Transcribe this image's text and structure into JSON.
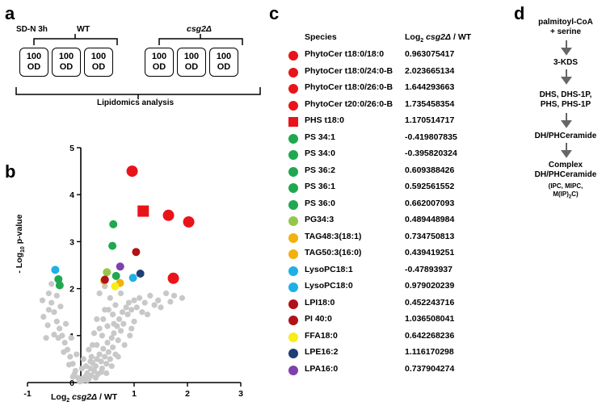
{
  "panels": {
    "a": "a",
    "b": "b",
    "c": "c",
    "d": "d"
  },
  "panel_a": {
    "condition": "SD-N 3h",
    "wt_label": "WT",
    "mutant_label": "csg2Δ",
    "box_line1": "100",
    "box_line2": "OD",
    "bottom_label": "Lipidomics analysis"
  },
  "panel_c": {
    "header_species": "Species",
    "header_value_prefix": "Log",
    "header_value_sub": "2",
    "header_value_italic": "csg2Δ",
    "header_value_suffix": "/ WT",
    "rows": [
      {
        "species": "PhytoCer t18:0/18:0",
        "value": "0.963075417",
        "color": "#e8141a",
        "shape": "circle"
      },
      {
        "species": "PhytoCer t18:0/24:0-B",
        "value": "2.023665134",
        "color": "#e8141a",
        "shape": "circle"
      },
      {
        "species": "PhytoCer t18:0/26:0-B",
        "value": "1.644293663",
        "color": "#e8141a",
        "shape": "circle"
      },
      {
        "species": "PhytoCer t20:0/26:0-B",
        "value": "1.735458354",
        "color": "#e8141a",
        "shape": "circle"
      },
      {
        "species": "PHS t18:0",
        "value": "1.170514717",
        "color": "#e8141a",
        "shape": "square"
      },
      {
        "species": "PS 34:1",
        "value": "-0.419807835",
        "color": "#1fa84f",
        "shape": "circle"
      },
      {
        "species": "PS 34:0",
        "value": "-0.395820324",
        "color": "#1fa84f",
        "shape": "circle"
      },
      {
        "species": "PS 36:2",
        "value": "0.609388426",
        "color": "#1fa84f",
        "shape": "circle"
      },
      {
        "species": "PS 36:1",
        "value": "0.592561552",
        "color": "#1fa84f",
        "shape": "circle"
      },
      {
        "species": "PS 36:0",
        "value": "0.662007093",
        "color": "#1fa84f",
        "shape": "circle"
      },
      {
        "species": "PG34:3",
        "value": "0.489448984",
        "color": "#92c84a",
        "shape": "circle"
      },
      {
        "species": "TAG48:3(18:1)",
        "value": "0.734750813",
        "color": "#f2b10f",
        "shape": "circle"
      },
      {
        "species": "TAG50:3(16:0)",
        "value": "0.439419251",
        "color": "#f2b10f",
        "shape": "circle"
      },
      {
        "species": "LysoPC18:1",
        "value": "-0.47893937",
        "color": "#1eb0e6",
        "shape": "circle"
      },
      {
        "species": "LysoPC18:0",
        "value": "0.979020239",
        "color": "#1eb0e6",
        "shape": "circle"
      },
      {
        "species": "LPI18:0",
        "value": "0.452243716",
        "color": "#b01217",
        "shape": "circle"
      },
      {
        "species": "PI 40:0",
        "value": "1.036508041",
        "color": "#b01217",
        "shape": "circle"
      },
      {
        "species": "FFA18:0",
        "value": "0.642268236",
        "color": "#f6ee16",
        "shape": "circle"
      },
      {
        "species": "LPE16:2",
        "value": "1.116170298",
        "color": "#1d3f74",
        "shape": "circle"
      },
      {
        "species": "LPA16:0",
        "value": "0.737904274",
        "color": "#7f3fae",
        "shape": "circle"
      }
    ]
  },
  "panel_d": {
    "steps": [
      "palmitoyl-CoA\n+ serine",
      "3-KDS",
      "DHS, DHS-1P,\nPHS, PHS-1P",
      "DH/PHCeramide",
      "Complex\nDH/PHCeramide"
    ],
    "footnote": "(IPC, MIPC,",
    "footnote2_prefix": "M(IP)",
    "footnote2_sub": "2",
    "footnote2_suffix": "C)"
  },
  "chart_data": {
    "type": "scatter",
    "xlabel_prefix": "Log",
    "xlabel_sub": "2",
    "xlabel_italic": "csg2Δ",
    "xlabel_suffix": "/ WT",
    "ylabel_prefix": "- Log",
    "ylabel_sub": "10",
    "ylabel_suffix": "p-value",
    "xlim": [
      -1,
      3
    ],
    "ylim": [
      0,
      5
    ],
    "x_ticks": [
      "-1",
      "1",
      "2",
      "3"
    ],
    "x_tick_values": [
      -1,
      1,
      2,
      3
    ],
    "y_ticks": [
      "0",
      "1",
      "2",
      "3",
      "4",
      "5"
    ],
    "y_tick_values": [
      0,
      1,
      2,
      3,
      4,
      5
    ],
    "background_points": [
      [
        0.05,
        0.05
      ],
      [
        0.08,
        0.12
      ],
      [
        0.12,
        0.2
      ],
      [
        0.15,
        0.08
      ],
      [
        0.18,
        0.3
      ],
      [
        0.2,
        0.15
      ],
      [
        0.22,
        0.42
      ],
      [
        0.25,
        0.25
      ],
      [
        0.28,
        0.35
      ],
      [
        0.3,
        0.5
      ],
      [
        0.32,
        0.18
      ],
      [
        0.35,
        0.6
      ],
      [
        0.38,
        0.45
      ],
      [
        0.4,
        0.3
      ],
      [
        0.42,
        0.72
      ],
      [
        0.45,
        0.55
      ],
      [
        0.48,
        0.4
      ],
      [
        0.5,
        0.85
      ],
      [
        0.52,
        0.65
      ],
      [
        0.55,
        0.5
      ],
      [
        0.58,
        0.95
      ],
      [
        0.6,
        0.75
      ],
      [
        0.62,
        1.05
      ],
      [
        0.65,
        0.6
      ],
      [
        0.68,
        1.2
      ],
      [
        0.7,
        0.9
      ],
      [
        0.72,
        1.35
      ],
      [
        0.75,
        1.1
      ],
      [
        0.78,
        1.5
      ],
      [
        0.8,
        1.25
      ],
      [
        0.85,
        1.6
      ],
      [
        0.88,
        1.45
      ],
      [
        0.9,
        1.7
      ],
      [
        0.95,
        1.55
      ],
      [
        1.0,
        1.75
      ],
      [
        1.05,
        1.6
      ],
      [
        1.1,
        1.8
      ],
      [
        1.2,
        1.7
      ],
      [
        1.3,
        1.85
      ],
      [
        1.45,
        1.75
      ],
      [
        1.6,
        1.9
      ],
      [
        1.75,
        1.85
      ],
      [
        1.9,
        1.8
      ],
      [
        0.1,
        0.35
      ],
      [
        0.2,
        0.55
      ],
      [
        0.3,
        0.8
      ],
      [
        0.4,
        1.0
      ],
      [
        0.5,
        1.2
      ],
      [
        0.6,
        1.45
      ],
      [
        0.55,
        1.8
      ],
      [
        0.45,
        1.55
      ],
      [
        0.35,
        1.9
      ],
      [
        0.45,
        2.05
      ],
      [
        0.3,
        1.35
      ],
      [
        0.15,
        0.7
      ],
      [
        -0.05,
        0.1
      ],
      [
        -0.1,
        0.25
      ],
      [
        -0.15,
        0.4
      ],
      [
        -0.2,
        0.55
      ],
      [
        -0.25,
        0.7
      ],
      [
        -0.3,
        0.85
      ],
      [
        -0.35,
        1.0
      ],
      [
        -0.4,
        1.15
      ],
      [
        -0.45,
        1.3
      ],
      [
        -0.5,
        1.5
      ],
      [
        -0.55,
        1.7
      ],
      [
        -0.6,
        1.9
      ],
      [
        -0.42,
        0.95
      ],
      [
        -0.32,
        0.65
      ],
      [
        -0.22,
        0.38
      ],
      [
        -0.12,
        0.18
      ],
      [
        -0.5,
        1.02
      ],
      [
        -0.62,
        1.22
      ],
      [
        -0.38,
        1.62
      ],
      [
        -0.28,
        1.25
      ],
      [
        -0.18,
        0.95
      ],
      [
        -0.08,
        0.6
      ],
      [
        0.02,
        0.3
      ],
      [
        -0.55,
        2.1
      ],
      [
        -0.45,
        1.85
      ],
      [
        0.25,
        1.05
      ],
      [
        0.05,
        0.5
      ],
      [
        0.65,
        1.65
      ],
      [
        0.75,
        1.9
      ],
      [
        -0.02,
        0.02
      ],
      [
        0.02,
        0.08
      ],
      [
        -0.15,
        0.12
      ],
      [
        0.12,
        0.05
      ],
      [
        0.28,
        0.1
      ],
      [
        0.38,
        0.22
      ],
      [
        0.48,
        0.2
      ],
      [
        0.18,
        0.45
      ],
      [
        0.58,
        0.35
      ],
      [
        0.7,
        0.55
      ],
      [
        0.82,
        0.8
      ],
      [
        0.92,
        1.0
      ],
      [
        1.0,
        1.3
      ],
      [
        0.95,
        1.15
      ],
      [
        1.15,
        1.5
      ],
      [
        1.25,
        1.45
      ],
      [
        1.38,
        1.65
      ],
      [
        1.5,
        1.6
      ],
      [
        1.68,
        1.72
      ],
      [
        0.35,
        1.15
      ],
      [
        0.42,
        1.35
      ],
      [
        0.52,
        1.55
      ],
      [
        0.62,
        1.25
      ],
      [
        0.22,
        0.8
      ],
      [
        -0.65,
        0.95
      ],
      [
        -0.7,
        1.4
      ],
      [
        -0.72,
        1.75
      ],
      [
        -0.6,
        1.55
      ]
    ],
    "highlight_points": [
      {
        "x": 0.963075417,
        "y": 4.5,
        "color": "#e8141a",
        "shape": "circle",
        "size": "large"
      },
      {
        "x": 2.023665134,
        "y": 3.42,
        "color": "#e8141a",
        "shape": "circle",
        "size": "large"
      },
      {
        "x": 1.644293663,
        "y": 3.56,
        "color": "#e8141a",
        "shape": "circle",
        "size": "large"
      },
      {
        "x": 1.735458354,
        "y": 2.22,
        "color": "#e8141a",
        "shape": "circle",
        "size": "large"
      },
      {
        "x": 1.170514717,
        "y": 3.65,
        "color": "#e8141a",
        "shape": "square",
        "size": "large"
      },
      {
        "x": -0.419807835,
        "y": 2.2,
        "color": "#1fa84f",
        "shape": "circle",
        "size": "small"
      },
      {
        "x": -0.395820324,
        "y": 2.07,
        "color": "#1fa84f",
        "shape": "circle",
        "size": "small"
      },
      {
        "x": 0.609388426,
        "y": 3.37,
        "color": "#1fa84f",
        "shape": "circle",
        "size": "small"
      },
      {
        "x": 0.592561552,
        "y": 2.91,
        "color": "#1fa84f",
        "shape": "circle",
        "size": "small"
      },
      {
        "x": 0.662007093,
        "y": 2.27,
        "color": "#1fa84f",
        "shape": "circle",
        "size": "small"
      },
      {
        "x": 0.489448984,
        "y": 2.35,
        "color": "#92c84a",
        "shape": "circle",
        "size": "small"
      },
      {
        "x": 0.734750813,
        "y": 2.12,
        "color": "#f2b10f",
        "shape": "circle",
        "size": "small"
      },
      {
        "x": 0.439419251,
        "y": 2.17,
        "color": "#f2b10f",
        "shape": "circle",
        "size": "small"
      },
      {
        "x": -0.47893937,
        "y": 2.4,
        "color": "#1eb0e6",
        "shape": "circle",
        "size": "small"
      },
      {
        "x": 0.979020239,
        "y": 2.23,
        "color": "#1eb0e6",
        "shape": "circle",
        "size": "small"
      },
      {
        "x": 0.452243716,
        "y": 2.19,
        "color": "#b01217",
        "shape": "circle",
        "size": "small"
      },
      {
        "x": 1.036508041,
        "y": 2.78,
        "color": "#b01217",
        "shape": "circle",
        "size": "small"
      },
      {
        "x": 0.642268236,
        "y": 2.05,
        "color": "#f6ee16",
        "shape": "circle",
        "size": "small"
      },
      {
        "x": 1.116170298,
        "y": 2.32,
        "color": "#1d3f74",
        "shape": "circle",
        "size": "small"
      },
      {
        "x": 0.737904274,
        "y": 2.47,
        "color": "#7f3fae",
        "shape": "circle",
        "size": "small"
      }
    ]
  }
}
